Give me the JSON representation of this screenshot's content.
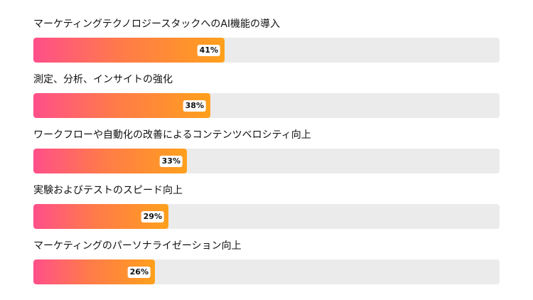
{
  "chart_data": {
    "type": "bar",
    "orientation": "horizontal",
    "categories": [
      "マーケティングテクノロジースタックへのAI機能の導入",
      "測定、分析、インサイトの強化",
      "ワークフローや自動化の改善によるコンテンツベロシティ向上",
      "実験およびテストのスピード向上",
      "マーケティングのパーソナライゼーション向上"
    ],
    "values": [
      41,
      38,
      33,
      29,
      26
    ],
    "value_labels": [
      "41%",
      "38%",
      "33%",
      "29%",
      "26%"
    ],
    "xlim": [
      0,
      100
    ],
    "grid": false,
    "legend": "none",
    "colors": {
      "fill_start": "#ff4f8a",
      "fill_end": "#ffa01c",
      "track": "#ebebeb",
      "label_bg": "#ffffff"
    }
  }
}
